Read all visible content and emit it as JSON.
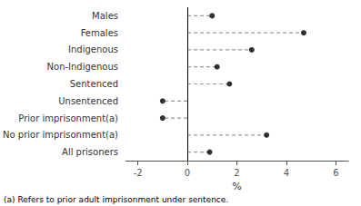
{
  "chart_data": {
    "type": "lollipop",
    "orientation": "horizontal",
    "categories": [
      "Males",
      "Females",
      "Indigenous",
      "Non-Indigenous",
      "Sentenced",
      "Unsentenced",
      "Prior imprisonment(a)",
      "No prior imprisonment(a)",
      "All prisoners"
    ],
    "values": [
      1.0,
      4.7,
      2.6,
      1.2,
      1.7,
      -1.0,
      -1.0,
      3.2,
      0.9
    ],
    "xlim": [
      -2.5,
      6.5
    ],
    "xticks": [
      -2,
      0,
      2,
      4,
      6
    ],
    "xlabel": "%",
    "footnote": "(a) Refers to prior adult imprisonment under sentence.",
    "color": "black",
    "line_style": "dashed",
    "marker": "circle",
    "grid": false
  }
}
